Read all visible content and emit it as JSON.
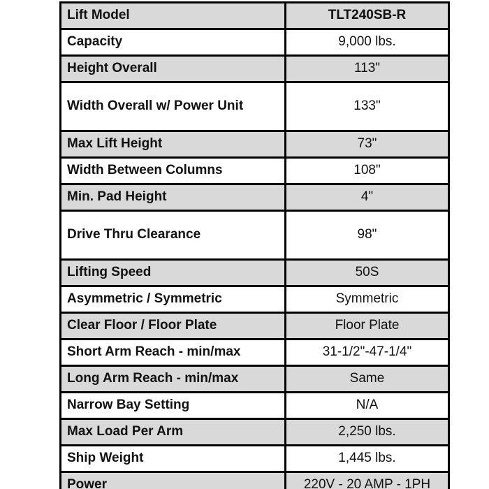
{
  "table": {
    "rows": [
      {
        "label": "Lift Model",
        "value": "TLT240SB-R",
        "shaded": true,
        "tall": false,
        "value_bold": true
      },
      {
        "label": "Capacity",
        "value": "9,000 lbs.",
        "shaded": false,
        "tall": false,
        "value_bold": false
      },
      {
        "label": "Height Overall",
        "value": "113\"",
        "shaded": true,
        "tall": false,
        "value_bold": false
      },
      {
        "label": "Width Overall w/ Power Unit",
        "value": "133\"",
        "shaded": false,
        "tall": true,
        "value_bold": false
      },
      {
        "label": "Max Lift Height",
        "value": "73\"",
        "shaded": true,
        "tall": false,
        "value_bold": false
      },
      {
        "label": "Width Between Columns",
        "value": "108\"",
        "shaded": false,
        "tall": false,
        "value_bold": false
      },
      {
        "label": "Min. Pad Height",
        "value": "4\"",
        "shaded": true,
        "tall": false,
        "value_bold": false
      },
      {
        "label": "Drive Thru Clearance",
        "value": "98\"",
        "shaded": false,
        "tall": true,
        "value_bold": false
      },
      {
        "label": "Lifting Speed",
        "value": "50S",
        "shaded": true,
        "tall": false,
        "value_bold": false
      },
      {
        "label": "Asymmetric / Symmetric",
        "value": "Symmetric",
        "shaded": false,
        "tall": false,
        "value_bold": false
      },
      {
        "label": "Clear Floor / Floor Plate",
        "value": "Floor Plate",
        "shaded": true,
        "tall": false,
        "value_bold": false
      },
      {
        "label": "Short Arm Reach - min/max",
        "value": "31-1/2\"-47-1/4\"",
        "shaded": false,
        "tall": false,
        "value_bold": false
      },
      {
        "label": "Long Arm Reach - min/max",
        "value": "Same",
        "shaded": true,
        "tall": false,
        "value_bold": false
      },
      {
        "label": "Narrow Bay Setting",
        "value": "N/A",
        "shaded": false,
        "tall": false,
        "value_bold": false
      },
      {
        "label": "Max Load Per Arm",
        "value": "2,250 lbs.",
        "shaded": true,
        "tall": false,
        "value_bold": false
      },
      {
        "label": "Ship Weight",
        "value": "1,445 lbs.",
        "shaded": false,
        "tall": false,
        "value_bold": false
      },
      {
        "label": "Power",
        "value": "220V - 20 AMP - 1PH",
        "shaded": true,
        "tall": false,
        "value_bold": false
      }
    ]
  },
  "colors": {
    "row_shaded": "#d9d9d9",
    "row_plain": "#ffffff",
    "border": "#000000",
    "text": "#111111"
  }
}
